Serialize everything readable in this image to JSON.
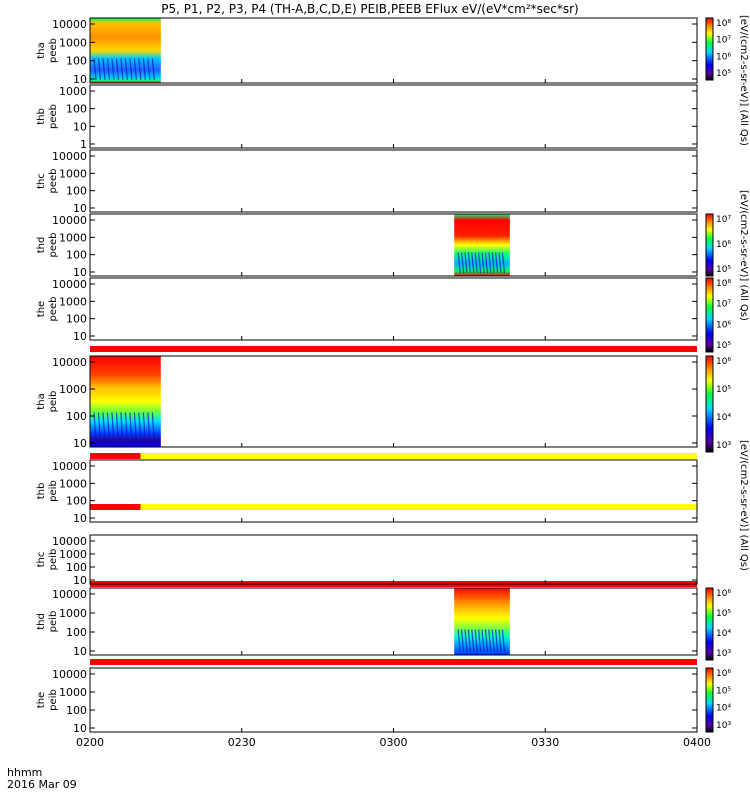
{
  "title": "P5, P1, P2, P3, P4 (TH-A,B,C,D,E) PEIB,PEEB EFlux eV/(eV*cm²*sec*sr)",
  "right_labels": {
    "top": "[eV/(cm2-s-sr-eV)] (All Qs)",
    "mid": "[eV/(cm2-s-sr-eV)] (All Qs)",
    "bottom": "[eV/(cm2-s-sr-eV)] (All Qs)"
  },
  "footer": {
    "time_label": "hhmm",
    "date_label": "2016 Mar 09"
  },
  "chart_data": {
    "type": "heatmap",
    "x": {
      "ticks": [
        "0200",
        "0230",
        "0300",
        "0330",
        "0400"
      ],
      "range": [
        "02:00",
        "04:00"
      ]
    },
    "panels": [
      {
        "probe": "tha",
        "instrument": "peeb",
        "y_ticks": [
          "10000",
          "1000",
          "100",
          "10"
        ],
        "y_scale": "log",
        "data_interval": [
          "02:00",
          "02:14"
        ],
        "colorbar": [
          "10⁸",
          "10⁷",
          "10⁶",
          "10⁵"
        ]
      },
      {
        "probe": "thb",
        "instrument": "peeb",
        "y_ticks": [
          "1000",
          "100",
          "10",
          "1"
        ],
        "y_scale": "log",
        "data_interval": null,
        "colorbar": null
      },
      {
        "probe": "thc",
        "instrument": "peeb",
        "y_ticks": [
          "10000",
          "1000",
          "100",
          "10"
        ],
        "y_scale": "log",
        "data_interval": null,
        "colorbar": null
      },
      {
        "probe": "thd",
        "instrument": "peeb",
        "y_ticks": [
          "10000",
          "1000",
          "100",
          "10"
        ],
        "y_scale": "log",
        "data_interval": [
          "03:12",
          "03:23"
        ],
        "colorbar": [
          "10⁷",
          "10⁶",
          "10⁵"
        ]
      },
      {
        "probe": "the",
        "instrument": "peeb",
        "y_ticks": [
          "10000",
          "1000",
          "100",
          "10"
        ],
        "y_scale": "log",
        "data_interval": null,
        "colorbar": [
          "10⁸",
          "10⁷",
          "10⁶",
          "10⁵"
        ]
      },
      {
        "probe": "tha",
        "instrument": "peib",
        "y_ticks": [
          "10000",
          "1000",
          "100",
          "10"
        ],
        "y_scale": "log",
        "data_interval": [
          "02:00",
          "02:14"
        ],
        "colorbar": [
          "10⁶",
          "10⁵",
          "10⁴",
          "10³"
        ]
      },
      {
        "probe": "thb",
        "instrument": "peib",
        "y_ticks": [
          "10000",
          "1000",
          "100",
          "10"
        ],
        "y_scale": "log",
        "data_interval": null,
        "colorbar": null
      },
      {
        "probe": "thc",
        "instrument": "peib",
        "y_ticks": [
          "10000",
          "1000",
          "100",
          "10"
        ],
        "y_scale": "log",
        "data_interval": null,
        "colorbar": null
      },
      {
        "probe": "thd",
        "instrument": "peib",
        "y_ticks": [
          "10000",
          "1000",
          "100",
          "10"
        ],
        "y_scale": "log",
        "data_interval": [
          "03:12",
          "03:23"
        ],
        "colorbar": [
          "10⁶",
          "10⁵",
          "10⁴",
          "10³"
        ]
      },
      {
        "probe": "the",
        "instrument": "peib",
        "y_ticks": [
          "10000",
          "1000",
          "100",
          "10"
        ],
        "y_scale": "log",
        "data_interval": null,
        "colorbar": [
          "10⁶",
          "10⁵",
          "10⁴",
          "10³"
        ]
      }
    ],
    "status_bars": [
      {
        "segments": [
          {
            "from": "02:00",
            "to": "04:00",
            "color": "#ff0000"
          }
        ]
      },
      {
        "segments": [
          {
            "from": "02:00",
            "to": "02:10",
            "color": "#ff0000"
          },
          {
            "from": "02:10",
            "to": "04:00",
            "color": "#ffff00"
          }
        ]
      },
      {
        "segments": [
          {
            "from": "02:00",
            "to": "02:10",
            "color": "#ff0000"
          },
          {
            "from": "02:10",
            "to": "04:00",
            "color": "#ffff00"
          }
        ]
      },
      {
        "segments": [
          {
            "from": "02:00",
            "to": "04:00",
            "color": "#ff0000"
          }
        ]
      },
      {
        "segments": [
          {
            "from": "02:00",
            "to": "04:00",
            "color": "#ff0000"
          }
        ]
      }
    ]
  }
}
